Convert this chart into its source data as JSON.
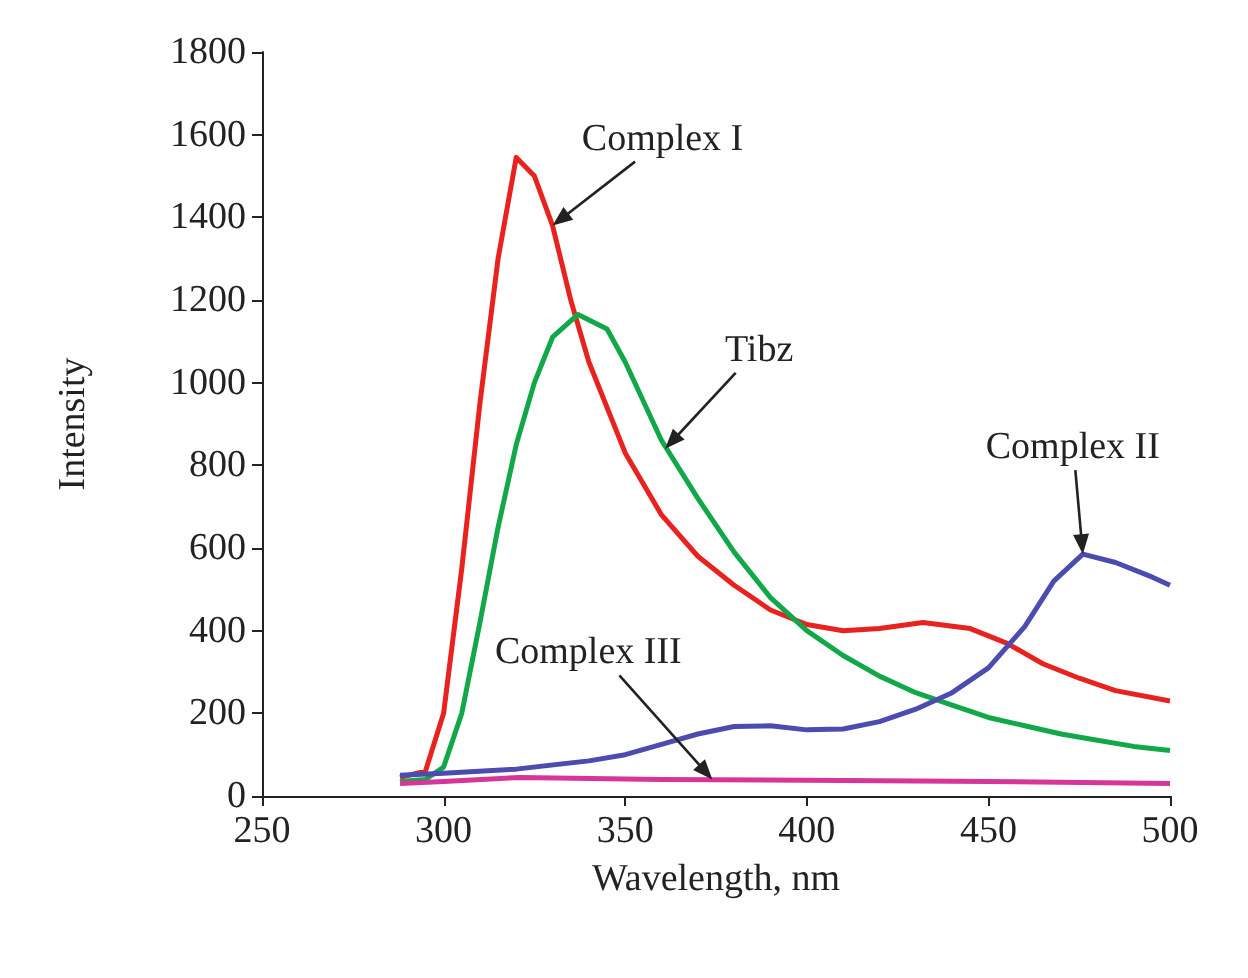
{
  "chart_data": {
    "type": "line",
    "xlabel": "Wavelength, nm",
    "ylabel": "Intensity",
    "xlim": [
      250,
      500
    ],
    "xticks": [
      250,
      300,
      350,
      400,
      450,
      500
    ],
    "ylim": [
      0,
      1800
    ],
    "yticks": [
      0,
      200,
      400,
      600,
      800,
      1000,
      1200,
      1400,
      1600,
      1800
    ],
    "marker": "none",
    "line_style": "solid",
    "series": [
      {
        "color": "#e8221f",
        "x": [
          288,
          295,
          300,
          305,
          310,
          315,
          320,
          325,
          330,
          335,
          340,
          350,
          360,
          370,
          380,
          390,
          400,
          410,
          420,
          432,
          445,
          455,
          465,
          475,
          485,
          500
        ],
        "values": [
          45,
          60,
          200,
          550,
          950,
          1300,
          1545,
          1500,
          1380,
          1200,
          1050,
          830,
          680,
          580,
          510,
          450,
          415,
          400,
          405,
          420,
          405,
          370,
          320,
          285,
          255,
          230
        ]
      },
      {
        "color": "#12a84a",
        "x": [
          288,
          295,
          300,
          305,
          310,
          315,
          320,
          325,
          330,
          337,
          345,
          350,
          360,
          370,
          380,
          390,
          400,
          410,
          420,
          430,
          440,
          450,
          460,
          470,
          480,
          490,
          500
        ],
        "values": [
          35,
          40,
          70,
          200,
          420,
          650,
          850,
          1000,
          1110,
          1165,
          1130,
          1050,
          860,
          720,
          590,
          480,
          400,
          340,
          290,
          250,
          220,
          190,
          170,
          150,
          135,
          120,
          110
        ]
      },
      {
        "color": "#4b4bb0",
        "x": [
          288,
          300,
          320,
          340,
          350,
          360,
          370,
          380,
          390,
          400,
          410,
          420,
          430,
          440,
          450,
          460,
          468,
          476,
          485,
          495,
          500
        ],
        "values": [
          50,
          55,
          65,
          85,
          100,
          125,
          150,
          168,
          170,
          160,
          162,
          180,
          210,
          250,
          310,
          410,
          520,
          585,
          565,
          530,
          510
        ]
      },
      {
        "color": "#d6359a",
        "x": [
          288,
          300,
          321,
          360,
          400,
          450,
          500
        ],
        "values": [
          30,
          35,
          45,
          40,
          38,
          35,
          30
        ]
      }
    ],
    "annotations": [
      {
        "text": "Complex I",
        "x": 330,
        "y": 1380
      },
      {
        "text": "Tibz",
        "x": 361,
        "y": 840
      },
      {
        "text": "Complex II",
        "x": 476,
        "y": 585
      },
      {
        "text": "Complex III",
        "x": 374,
        "y": 40
      }
    ]
  }
}
